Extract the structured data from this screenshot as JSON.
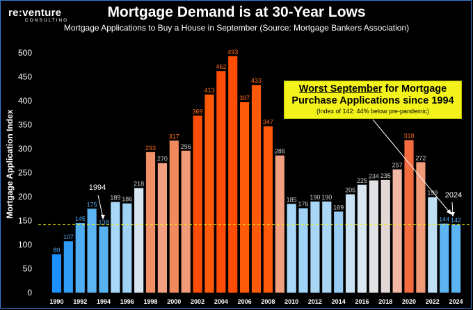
{
  "logo": {
    "main": "re:venture",
    "sub": "CONSULTING"
  },
  "header": {
    "title": "Mortgage Demand is at 30-Year Lows",
    "subtitle": "Mortgage Applications to Buy a House in September (Source: Mortgage Bankers Association)"
  },
  "callout": {
    "highlight": "Worst September",
    "line1_rest": " for Mortgage",
    "line2": "Purchase Applications since 1994",
    "note": "(Index of 142: 44% below pre-pandemic)"
  },
  "annotations": {
    "year_1994": "1994",
    "year_2024": "2024"
  },
  "colors": {
    "background": "#000000",
    "reference_line": "#f5f500",
    "low_value_labels": "#4aa8f0",
    "high_value_labels": "#ff6a1a",
    "mid_value_labels": "#d0d0d0",
    "axis_text": "#ffffff"
  },
  "chart_data": {
    "type": "bar",
    "ylabel": "Mortgage Application Index",
    "xlabel": "",
    "ylim": [
      0,
      500
    ],
    "yticks": [
      0,
      50,
      100,
      150,
      200,
      250,
      300,
      350,
      400,
      450,
      500
    ],
    "x_tick_labels": [
      "1990",
      "1992",
      "1994",
      "1996",
      "1998",
      "2000",
      "2002",
      "2004",
      "2006",
      "2008",
      "2010",
      "2012",
      "2014",
      "2016",
      "2018",
      "2020",
      "2022",
      "2024"
    ],
    "categories": [
      "1990",
      "1991",
      "1992",
      "1993",
      "1994",
      "1995",
      "1996",
      "1997",
      "1998",
      "1999",
      "2000",
      "2001",
      "2002",
      "2003",
      "2004",
      "2005",
      "2006",
      "2007",
      "2008",
      "2009",
      "2010",
      "2011",
      "2012",
      "2013",
      "2014",
      "2015",
      "2016",
      "2017",
      "2018",
      "2019",
      "2020",
      "2021",
      "2022",
      "2023",
      "2024"
    ],
    "values": [
      80,
      107,
      145,
      175,
      138,
      189,
      186,
      218,
      293,
      270,
      317,
      296,
      369,
      413,
      462,
      493,
      397,
      433,
      347,
      286,
      185,
      176,
      190,
      190,
      169,
      205,
      225,
      234,
      235,
      257,
      318,
      272,
      199,
      144,
      142
    ],
    "bar_colors": [
      "#1e90ff",
      "#2f9cf5",
      "#52aef2",
      "#5cb4f2",
      "#58b2f2",
      "#a8d8f8",
      "#a0d2f6",
      "#d6e7f3",
      "#f19067",
      "#f2a080",
      "#f08a5e",
      "#f19a78",
      "#ff4d05",
      "#ff5a0a",
      "#ff4d05",
      "#ff4d05",
      "#ff5a0a",
      "#ff5a0a",
      "#ff5a0a",
      "#f2a080",
      "#a8d8f8",
      "#a0d2f6",
      "#aad6f6",
      "#aad6f6",
      "#98ccf4",
      "#c8e2f4",
      "#d8e7f2",
      "#e2e2e6",
      "#e4d8d6",
      "#f0b8a4",
      "#f26c40",
      "#f19a78",
      "#bfdff5",
      "#5cb4f2",
      "#5cb4f2"
    ],
    "label_colors": [
      "#4aa8f0",
      "#4aa8f0",
      "#4aa8f0",
      "#4aa8f0",
      "#4aa8f0",
      "#d0d0d0",
      "#d0d0d0",
      "#d0d0d0",
      "#ff6a1a",
      "#d0d0d0",
      "#ff6a1a",
      "#d0d0d0",
      "#ff6a1a",
      "#ff6a1a",
      "#ff6a1a",
      "#ff6a1a",
      "#ff6a1a",
      "#ff6a1a",
      "#ff6a1a",
      "#d0d0d0",
      "#d0d0d0",
      "#d0d0d0",
      "#d0d0d0",
      "#d0d0d0",
      "#d0d0d0",
      "#d0d0d0",
      "#d0d0d0",
      "#d0d0d0",
      "#d0d0d0",
      "#d0d0d0",
      "#ff6a1a",
      "#d0d0d0",
      "#d0d0d0",
      "#4aa8f0",
      "#4aa8f0"
    ],
    "reference_line": 142,
    "grid": false
  }
}
